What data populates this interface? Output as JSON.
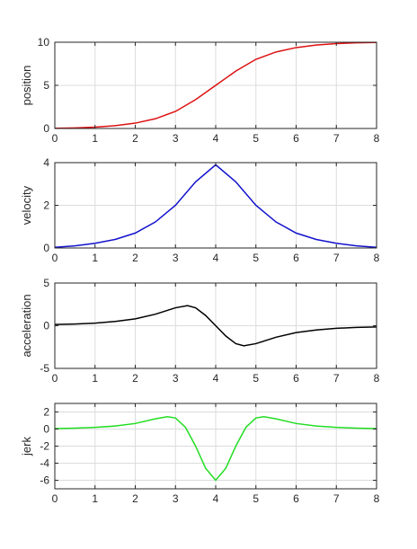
{
  "chart_data": [
    {
      "type": "line",
      "ylabel": "position",
      "xlim": [
        0,
        8
      ],
      "ylim": [
        0,
        10
      ],
      "xticks": [
        0,
        1,
        2,
        3,
        4,
        5,
        6,
        7,
        8
      ],
      "yticks": [
        0,
        5,
        10
      ],
      "grid": true,
      "color": "#dd1111",
      "series": [
        {
          "x": [
            0,
            0.5,
            1,
            1.5,
            2,
            2.5,
            3,
            3.5,
            4,
            4.5,
            5,
            5.5,
            6,
            6.5,
            7,
            7.5,
            8
          ],
          "y": [
            0.03,
            0.07,
            0.16,
            0.33,
            0.62,
            1.13,
            1.98,
            3.35,
            5.0,
            6.65,
            8.02,
            8.87,
            9.38,
            9.67,
            9.84,
            9.93,
            9.97
          ]
        }
      ]
    },
    {
      "type": "line",
      "ylabel": "velocity",
      "xlim": [
        0,
        8
      ],
      "ylim": [
        0,
        4
      ],
      "xticks": [
        0,
        1,
        2,
        3,
        4,
        5,
        6,
        7,
        8
      ],
      "yticks": [
        0,
        2,
        4
      ],
      "grid": true,
      "color": "#1111cc",
      "series": [
        {
          "x": [
            0,
            0.5,
            1,
            1.5,
            2,
            2.5,
            3,
            3.5,
            4,
            4.5,
            5,
            5.5,
            6,
            6.5,
            7,
            7.5,
            8
          ],
          "y": [
            0.03,
            0.1,
            0.22,
            0.4,
            0.7,
            1.22,
            2.0,
            3.1,
            3.9,
            3.1,
            2.0,
            1.22,
            0.7,
            0.4,
            0.22,
            0.1,
            0.03
          ]
        }
      ]
    },
    {
      "type": "line",
      "ylabel": "acceleration",
      "xlim": [
        0,
        8
      ],
      "ylim": [
        -5,
        5
      ],
      "xticks": [
        0,
        1,
        2,
        3,
        4,
        5,
        6,
        7,
        8
      ],
      "yticks": [
        -5,
        0,
        5
      ],
      "grid": true,
      "color": "#000000",
      "series": [
        {
          "x": [
            0,
            0.5,
            1,
            1.5,
            2,
            2.5,
            3,
            3.3,
            3.5,
            3.75,
            4,
            4.25,
            4.5,
            4.7,
            5,
            5.5,
            6,
            6.5,
            7,
            7.5,
            8
          ],
          "y": [
            0.15,
            0.2,
            0.3,
            0.5,
            0.8,
            1.35,
            2.1,
            2.35,
            2.1,
            1.2,
            0,
            -1.2,
            -2.1,
            -2.35,
            -2.1,
            -1.35,
            -0.8,
            -0.5,
            -0.3,
            -0.2,
            -0.15
          ]
        }
      ]
    },
    {
      "type": "line",
      "ylabel": "jerk",
      "xlim": [
        0,
        8
      ],
      "ylim": [
        -7,
        3
      ],
      "xticks": [
        0,
        1,
        2,
        3,
        4,
        5,
        6,
        7,
        8
      ],
      "yticks": [
        -6,
        -4,
        -2,
        0,
        2
      ],
      "grid": true,
      "color": "#22dd22",
      "series": [
        {
          "x": [
            0,
            0.5,
            1,
            1.5,
            2,
            2.5,
            2.8,
            3,
            3.25,
            3.5,
            3.75,
            4,
            4.25,
            4.5,
            4.75,
            5,
            5.2,
            5.5,
            6,
            6.5,
            7,
            7.5,
            8
          ],
          "y": [
            0.05,
            0.1,
            0.2,
            0.35,
            0.65,
            1.2,
            1.45,
            1.3,
            0.2,
            -2.0,
            -4.6,
            -6.0,
            -4.6,
            -2.0,
            0.2,
            1.3,
            1.45,
            1.2,
            0.65,
            0.35,
            0.2,
            0.1,
            0.05
          ]
        }
      ]
    }
  ]
}
